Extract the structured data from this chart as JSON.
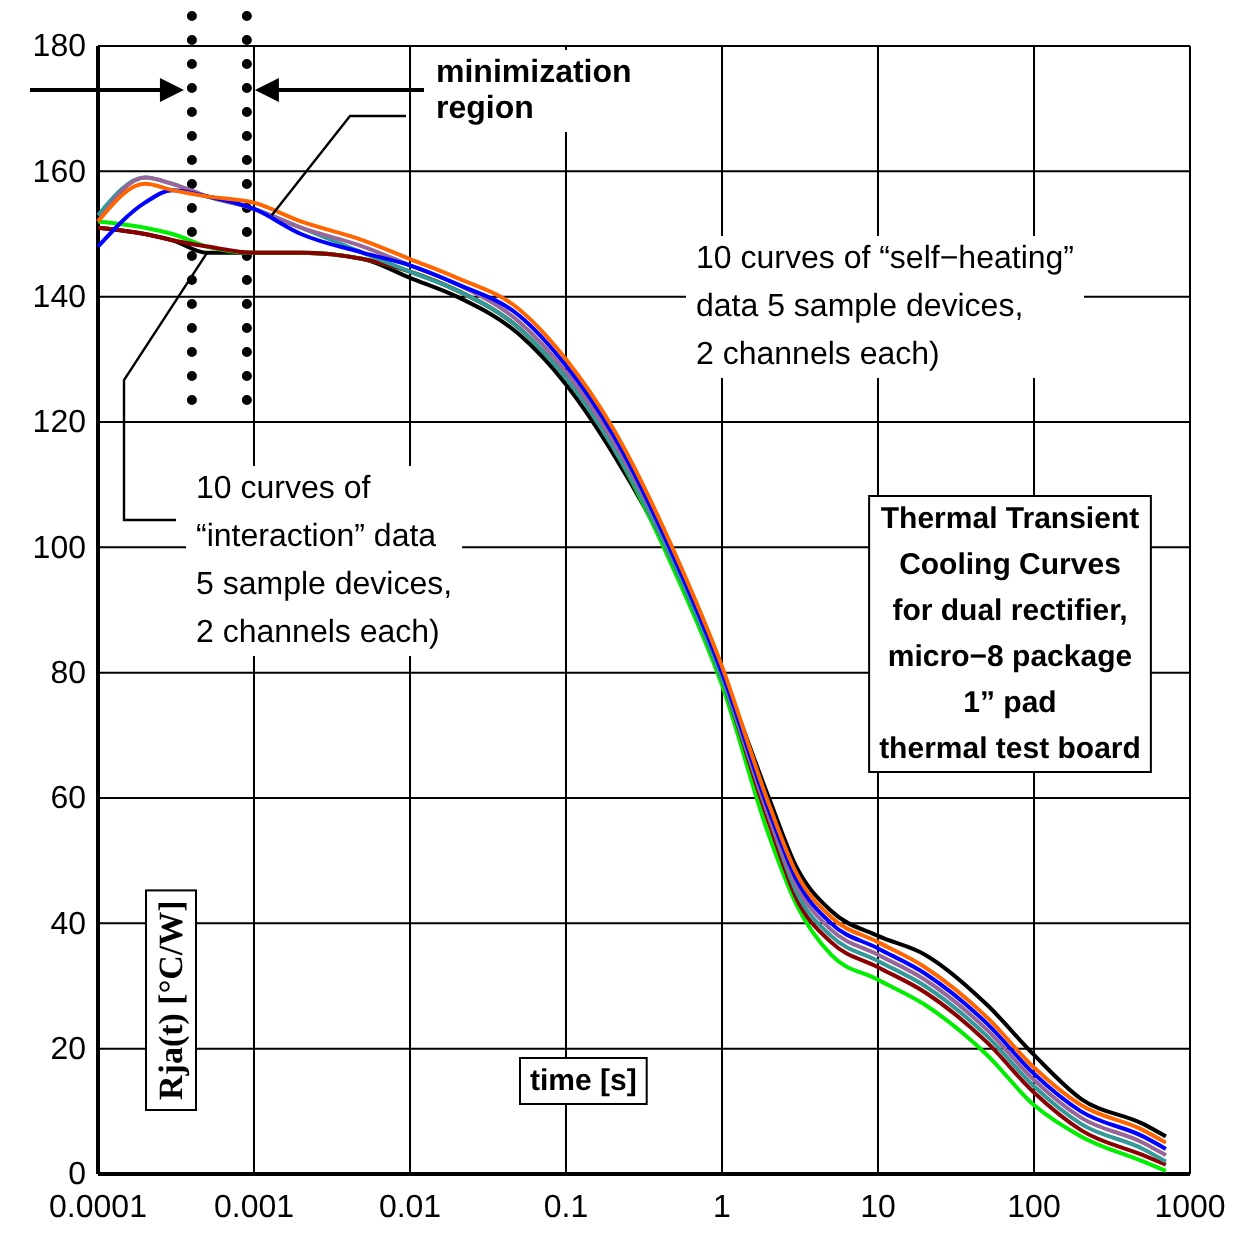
{
  "chart_data": {
    "type": "line",
    "title": "Thermal Transient\nCooling Curves\nfor dual rectifier,\nmicro−8 package\n1” pad\nthermal test board",
    "xlabel": "time [s]",
    "ylabel": "Rja(t) [°C/W]",
    "log": "x",
    "xlim": [
      0.0001,
      1000
    ],
    "ylim": [
      0,
      180
    ],
    "xticks": [
      0.0001,
      0.001,
      0.01,
      0.1,
      1,
      10,
      100,
      1000
    ],
    "yticks": [
      0,
      20,
      40,
      60,
      80,
      100,
      120,
      140,
      160,
      180
    ],
    "grid": true,
    "marker": "none",
    "line_style": "solid",
    "x": [
      0.0001,
      0.0002,
      0.0003,
      0.0005,
      0.001,
      0.002,
      0.005,
      0.01,
      0.02,
      0.05,
      0.1,
      0.2,
      0.5,
      1,
      2,
      3,
      5,
      10,
      20,
      50,
      100,
      200,
      500,
      700
    ],
    "series": [
      {
        "color": "#000000",
        "values": [
          151,
          150,
          149,
          147,
          147,
          147,
          146,
          143,
          140,
          134,
          126,
          115,
          97,
          80,
          60,
          49,
          42,
          38,
          35,
          27,
          19,
          12,
          8,
          6
        ]
      },
      {
        "color": "#00ee00",
        "values": [
          152,
          151,
          150,
          148,
          147,
          147,
          146,
          144,
          141,
          135,
          127,
          116,
          96,
          78,
          54,
          43,
          35,
          31,
          27,
          19,
          11,
          6,
          2,
          0.5
        ]
      },
      {
        "color": "#8b0000",
        "values": [
          151,
          150,
          149,
          148,
          147,
          147,
          146,
          144,
          141,
          135,
          127,
          116,
          97,
          79,
          56,
          44,
          37,
          33,
          29,
          21,
          13,
          7,
          3,
          1.5
        ]
      },
      {
        "color": "#339999",
        "values": [
          153,
          159,
          158,
          156,
          154,
          151,
          147,
          144,
          141,
          135,
          127,
          116,
          97,
          79,
          57,
          45,
          38,
          34,
          30,
          22,
          14,
          8,
          4,
          2
        ]
      },
      {
        "color": "#996699",
        "values": [
          152,
          159,
          158,
          156,
          154,
          151,
          148,
          145,
          142,
          136,
          128,
          117,
          98,
          80,
          57,
          46,
          39,
          35,
          31,
          23,
          15,
          9,
          5,
          3
        ]
      },
      {
        "color": "#0000ff",
        "values": [
          148,
          155,
          157,
          156,
          154,
          150,
          147,
          145,
          142,
          137,
          129,
          118,
          98,
          80,
          58,
          47,
          40,
          36,
          32,
          24,
          16,
          10,
          6,
          4
        ]
      },
      {
        "color": "#ff6600",
        "values": [
          152,
          158,
          157,
          156,
          155,
          152,
          149,
          146,
          143,
          138,
          130,
          119,
          99,
          81,
          59,
          48,
          41,
          37,
          33,
          25,
          17,
          11,
          7,
          5
        ]
      }
    ],
    "ref_lines": [
      {
        "axis": "x",
        "value": 0.0004,
        "line_style": "dotted",
        "color": "#000000"
      },
      {
        "axis": "x",
        "value": 0.0009,
        "line_style": "dotted",
        "color": "#000000"
      }
    ],
    "annotations": [
      {
        "text": "minimization\nregion",
        "x": 0.0013,
        "y": 153
      },
      "10 curves of “self−heating”\ndata 5 sample devices,\n2 channels each)",
      {
        "text": "10 curves of\n“interaction” data\n5 sample devices,\n2 channels each)",
        "x": 0.0005,
        "y": 147
      }
    ]
  }
}
